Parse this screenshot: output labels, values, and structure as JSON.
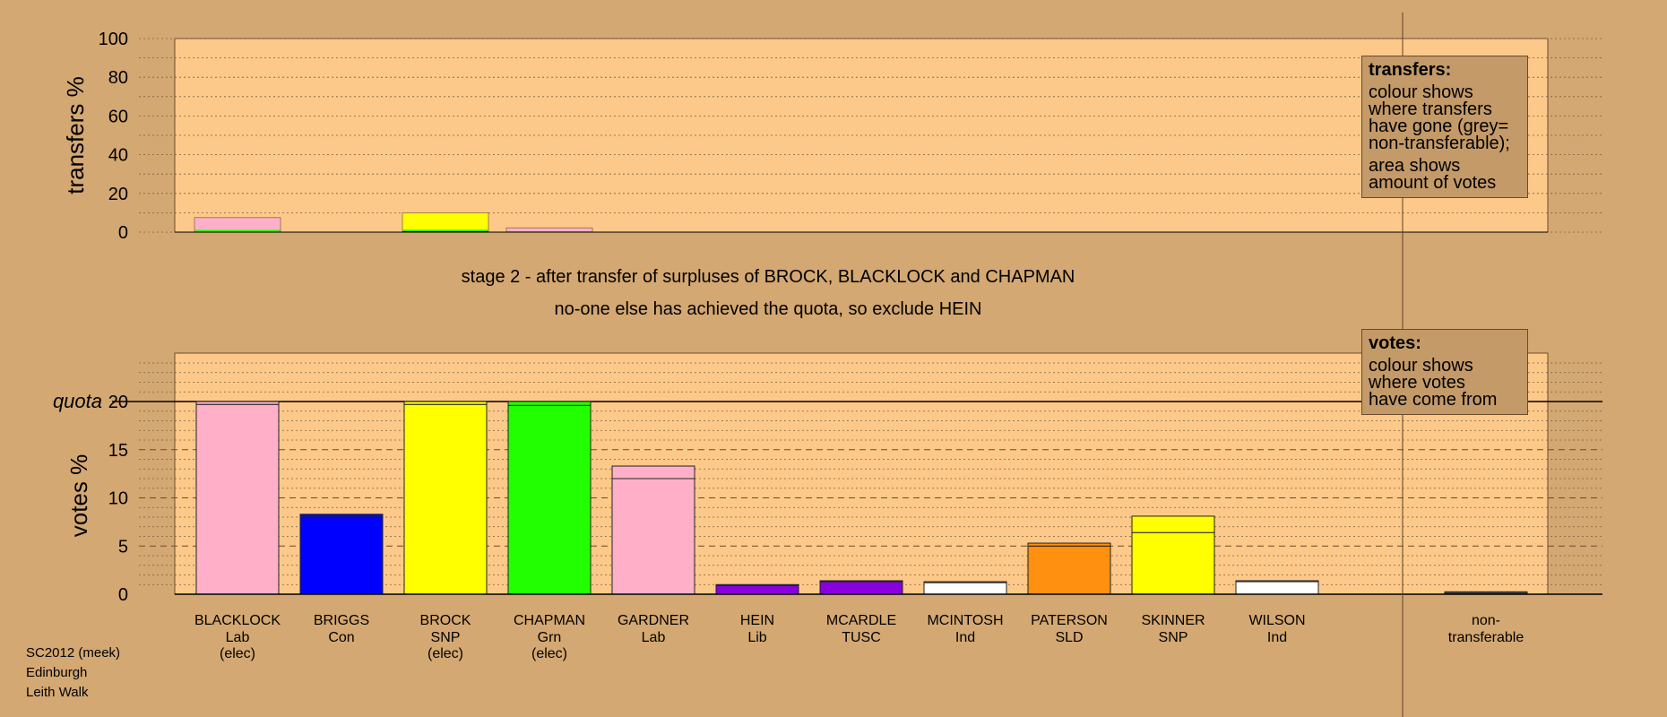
{
  "title": {
    "line1": "stage 2 - after transfer of surpluses of BROCK, BLACKLOCK and CHAPMAN",
    "line2": "no-one else has achieved the quota, so exclude HEIN"
  },
  "footer": {
    "line1": "SC2012 (meek)",
    "line2": "Edinburgh",
    "line3": "Leith Walk"
  },
  "legend_transfers": {
    "title": "transfers:",
    "line1": "colour shows",
    "line2": "where transfers",
    "line3": "have gone (grey=",
    "line4": "non-transferable);",
    "line5": "area shows",
    "line6": "amount of votes"
  },
  "legend_votes": {
    "title": "votes:",
    "line1": "colour shows",
    "line2": "where votes",
    "line3": "have come from"
  },
  "colors": {
    "background": "#d4a872",
    "plot_area": "#fdc98a",
    "Lab": "#ffb0c8",
    "Con": "#0000ff",
    "SNP": "#ffff00",
    "Grn": "#22ff00",
    "Lib": "#8800dd",
    "TUSC": "#8800dd",
    "Ind": "#ffffff",
    "SLD": "#ff9010",
    "nontransferable": "#444444"
  },
  "chart_data": [
    {
      "type": "bar",
      "name": "transfers",
      "ylabel": "transfers %",
      "ylim": [
        0,
        100
      ],
      "yticks": [
        0,
        20,
        40,
        60,
        80,
        100
      ],
      "grid": true,
      "categories": [
        "BLACKLOCK",
        "BRIGGS",
        "BROCK",
        "CHAPMAN",
        "GARDNER",
        "HEIN",
        "MCARDLE",
        "MCINTOSH",
        "PATERSON",
        "SKINNER",
        "WILSON"
      ],
      "bars": [
        {
          "candidate": "BLACKLOCK",
          "total": 7.5,
          "segments": [
            {
              "color": "#22ff00",
              "value": 1.2
            },
            {
              "color": "#ffb0c8",
              "value": 6.3
            }
          ]
        },
        {
          "candidate": "BROCK",
          "total": 10,
          "segments": [
            {
              "color": "#0000ff",
              "value": 0.5
            },
            {
              "color": "#22ff00",
              "value": 0.8
            },
            {
              "color": "#ffff00",
              "value": 8.7
            }
          ]
        },
        {
          "candidate": "CHAPMAN",
          "total": 2.2,
          "segments": [
            {
              "color": "#ff9010",
              "value": 0.5
            },
            {
              "color": "#ffb0c8",
              "value": 1.7
            }
          ]
        }
      ]
    },
    {
      "type": "bar",
      "name": "votes",
      "ylabel": "votes %",
      "ylim": [
        0,
        25
      ],
      "yticks": [
        0,
        5,
        10,
        15,
        20
      ],
      "quota": 20,
      "quota_label": "quota",
      "grid": true,
      "candidates": [
        {
          "name": "BLACKLOCK",
          "party": "Lab",
          "status": "(elec)",
          "color": "#ffb0c8",
          "values": [
            19.7,
            0.3
          ]
        },
        {
          "name": "BRIGGS",
          "party": "Con",
          "status": "",
          "color": "#0000ff",
          "values": [
            8.1,
            0.2
          ]
        },
        {
          "name": "BROCK",
          "party": "SNP",
          "status": "(elec)",
          "color": "#ffff00",
          "values": [
            19.7,
            0.3
          ]
        },
        {
          "name": "CHAPMAN",
          "party": "Grn",
          "status": "(elec)",
          "color": "#22ff00",
          "values": [
            19.6,
            0.4
          ]
        },
        {
          "name": "GARDNER",
          "party": "Lab",
          "status": "",
          "color": "#ffb0c8",
          "values": [
            12.0,
            1.3
          ]
        },
        {
          "name": "HEIN",
          "party": "Lib",
          "status": "",
          "color": "#8800dd",
          "values": [
            0.9,
            0.1
          ]
        },
        {
          "name": "MCARDLE",
          "party": "TUSC",
          "status": "",
          "color": "#8800dd",
          "values": [
            1.3,
            0.1
          ]
        },
        {
          "name": "MCINTOSH",
          "party": "Ind",
          "status": "",
          "color": "#ffffff",
          "values": [
            1.2,
            0.1
          ]
        },
        {
          "name": "PATERSON",
          "party": "SLD",
          "status": "",
          "color": "#ff9010",
          "values": [
            5.0,
            0.3
          ]
        },
        {
          "name": "SKINNER",
          "party": "SNP",
          "status": "",
          "color": "#ffff00",
          "values": [
            6.4,
            1.7
          ]
        },
        {
          "name": "WILSON",
          "party": "Ind",
          "status": "",
          "color": "#ffffff",
          "values": [
            1.3,
            0.1
          ]
        }
      ],
      "nontransferable": {
        "line1": "non-",
        "line2": "transferable",
        "value": 0.25
      }
    }
  ]
}
